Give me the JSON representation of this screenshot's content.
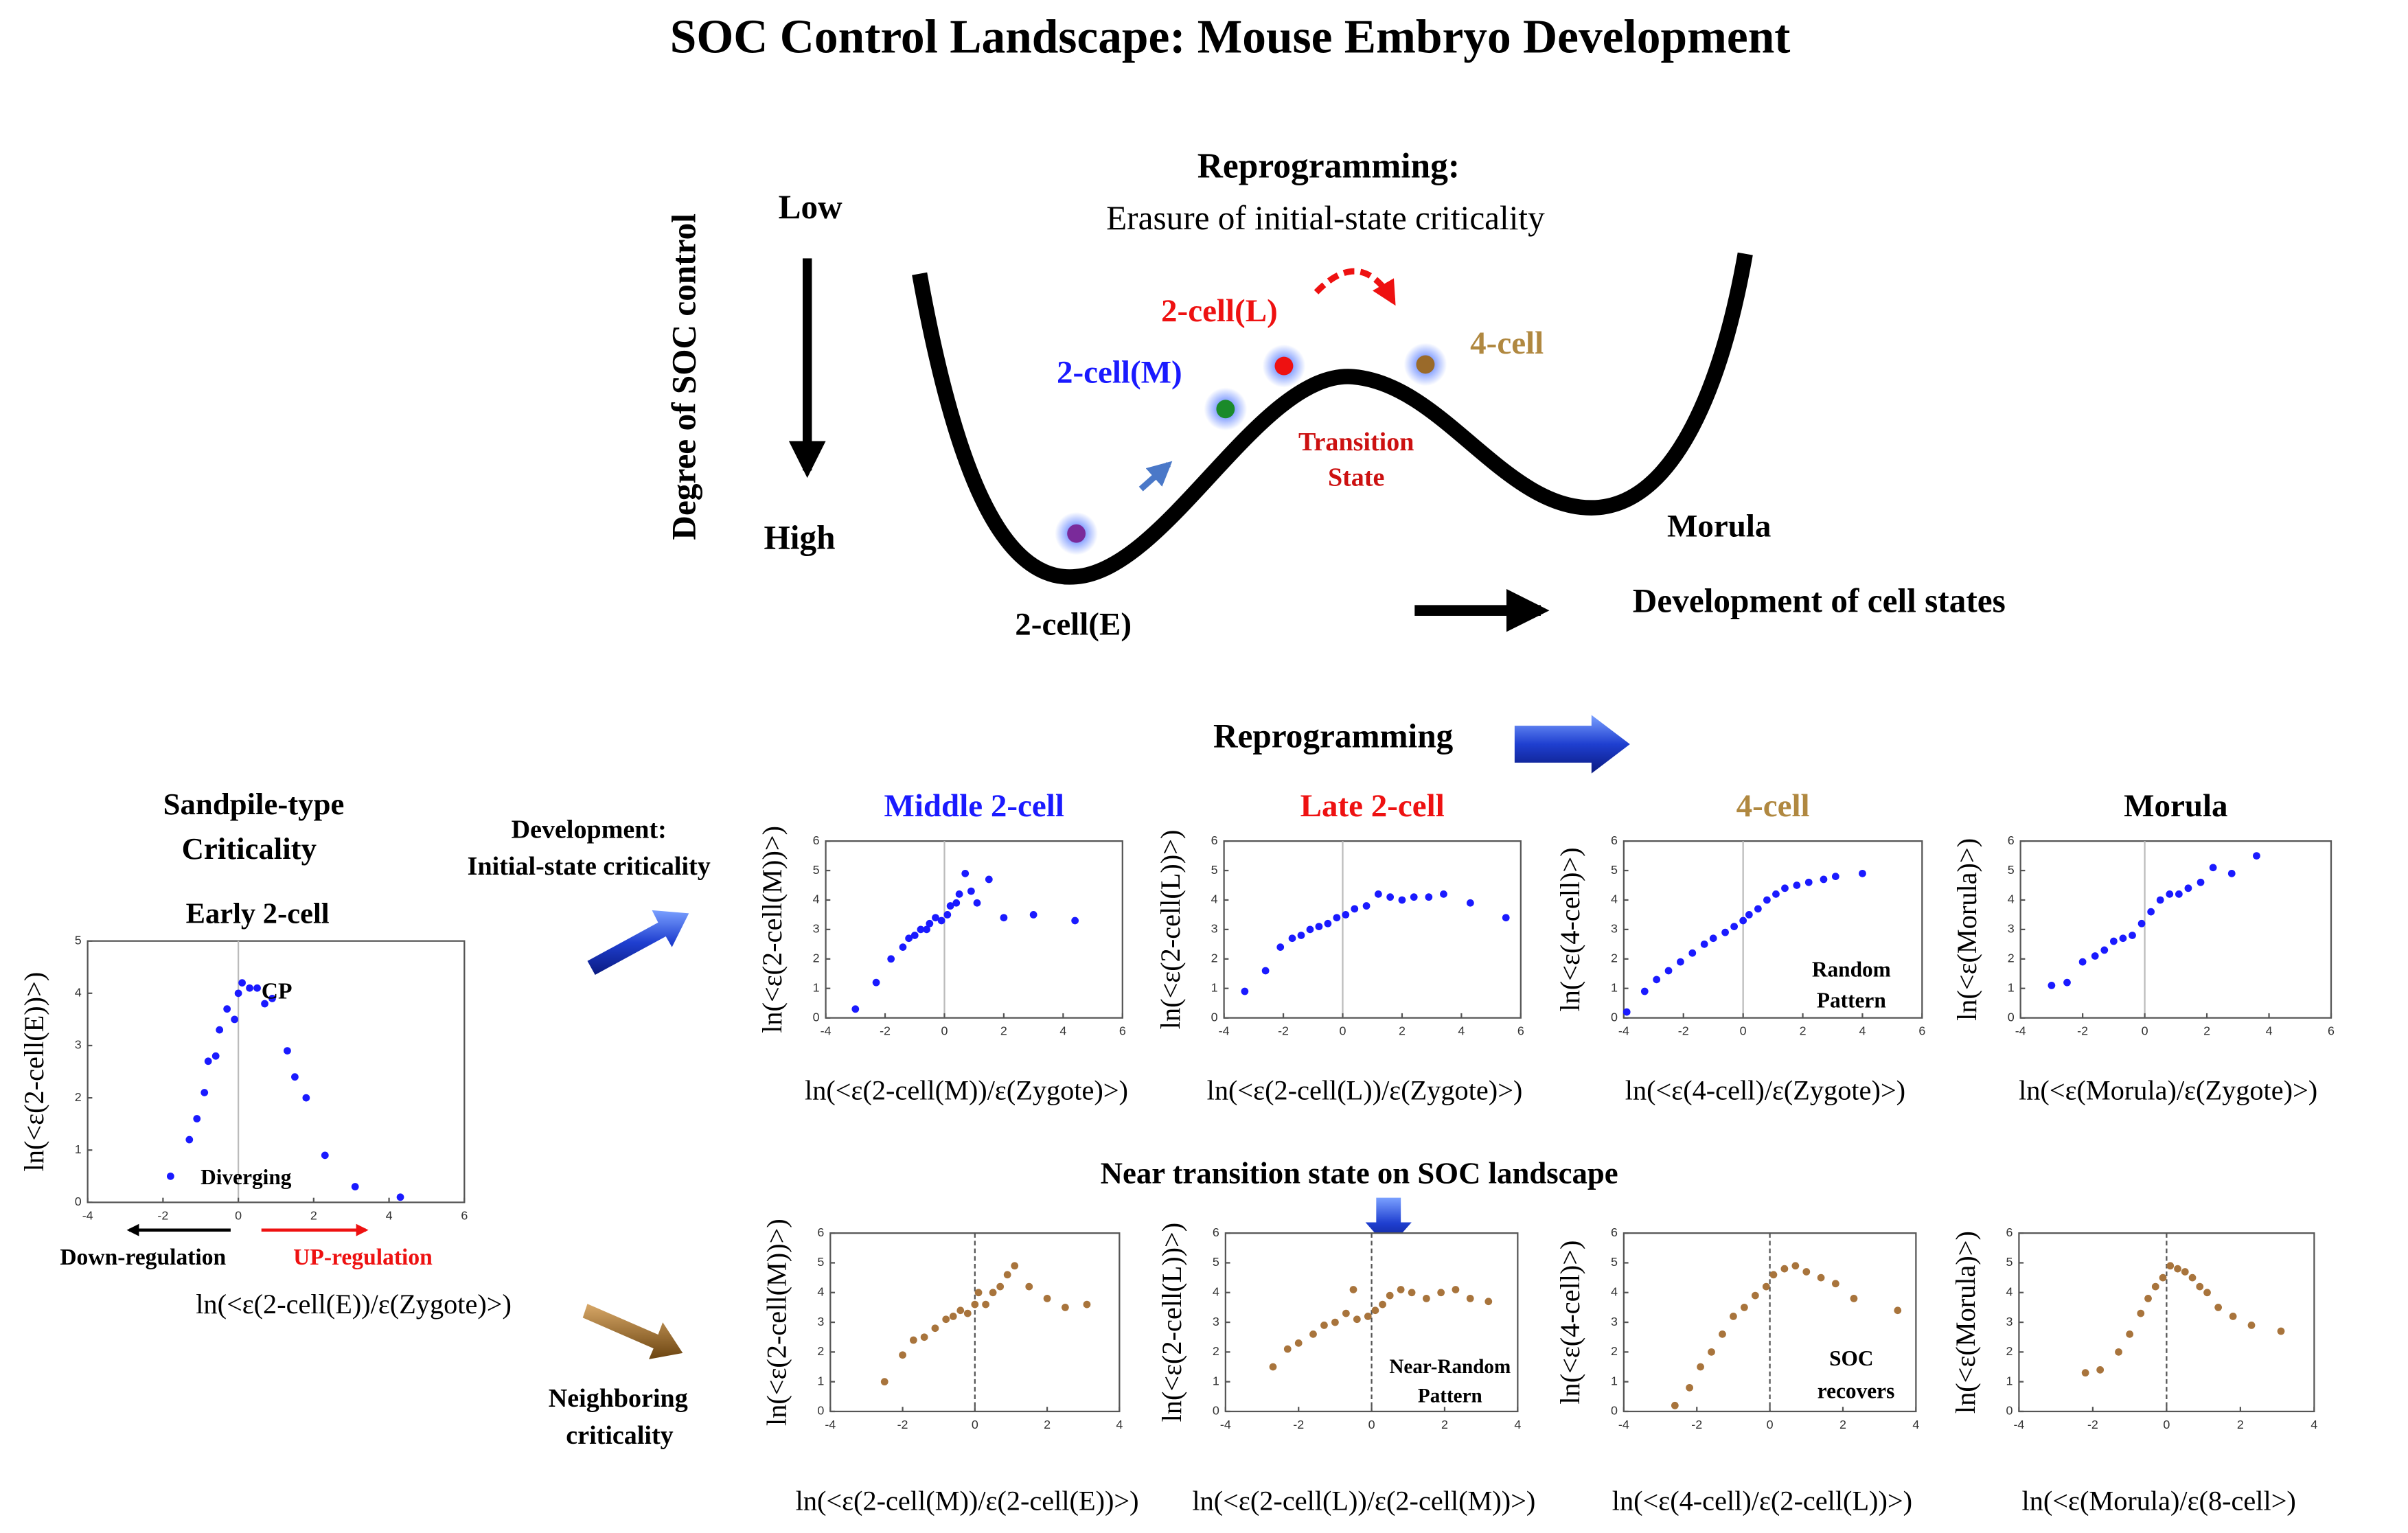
{
  "title": "SOC Control Landscape: Mouse Embryo Development",
  "landscape": {
    "y_axis": "Degree of SOC control",
    "low": "Low",
    "high": "High",
    "heading": "Reprogramming:",
    "subheading": "Erasure of initial-state criticality",
    "states": [
      "2-cell(E)",
      "2-cell(M)",
      "2-cell(L)",
      "4-cell",
      "Morula"
    ],
    "transition": [
      "Transition",
      "State"
    ],
    "x_axis": "Development of cell states"
  },
  "labels": {
    "reprogramming": "Reprogramming",
    "sandpile": [
      "Sandpile-type",
      "Criticality"
    ],
    "development": [
      "Development:",
      "Initial-state criticality"
    ],
    "near_transition": "Near transition state on SOC landscape",
    "neighboring": [
      "Neighboring",
      "criticality"
    ],
    "down": "Down-regulation",
    "up": "UP-regulation"
  },
  "chart_data": [
    {
      "type": "scatter",
      "title": "Early 2-cell",
      "title_color": "#000000",
      "x_label": "ln(<ε(2-cell(E))/ε(Zygote)>)",
      "y_label": "ln(<ε(2-cell(E))>)",
      "color": "#1a1aff",
      "xlim": [
        -4,
        6
      ],
      "ylim": [
        0,
        5
      ],
      "xticks": [
        -4,
        -2,
        0,
        2,
        4,
        6
      ],
      "yticks": [
        0,
        1,
        2,
        3,
        4,
        5
      ],
      "zero_line": "solid",
      "x": [
        -1.8,
        -1.3,
        -1.1,
        -0.9,
        -0.8,
        -0.6,
        -0.5,
        -0.3,
        -0.1,
        0,
        0.1,
        0.3,
        0.5,
        0.7,
        0.9,
        1.3,
        1.5,
        1.8,
        2.3,
        3.1,
        4.3
      ],
      "y": [
        0.5,
        1.2,
        1.6,
        2.1,
        2.7,
        2.8,
        3.3,
        3.7,
        3.5,
        4.0,
        4.2,
        4.1,
        4.1,
        3.8,
        3.9,
        2.9,
        2.4,
        2.0,
        0.9,
        0.3,
        0.1
      ],
      "annotations": [
        "CP",
        "Diverging"
      ]
    },
    {
      "type": "scatter",
      "title": "Middle 2-cell",
      "title_color": "#1a1aff",
      "x_label": "ln(<ε(2-cell(M))/ε(Zygote)>)",
      "y_label": "ln(<ε(2-cell(M))>)",
      "color": "#1a1aff",
      "xlim": [
        -4,
        6
      ],
      "ylim": [
        0,
        6
      ],
      "xticks": [
        -4,
        -2,
        0,
        2,
        4,
        6
      ],
      "yticks": [
        0,
        1,
        2,
        3,
        4,
        5,
        6
      ],
      "zero_line": "solid",
      "x": [
        -3,
        -2.3,
        -1.8,
        -1.4,
        -1.2,
        -1,
        -0.8,
        -0.6,
        -0.5,
        -0.3,
        -0.1,
        0.1,
        0.2,
        0.4,
        0.5,
        0.7,
        0.9,
        1.1,
        1.5,
        2,
        3,
        4.4
      ],
      "y": [
        0.3,
        1.2,
        2,
        2.4,
        2.7,
        2.8,
        3,
        3,
        3.2,
        3.4,
        3.3,
        3.5,
        3.8,
        3.9,
        4.2,
        4.9,
        4.3,
        3.9,
        4.7,
        3.4,
        3.5,
        3.3
      ],
      "annotations": []
    },
    {
      "type": "scatter",
      "title": "Late 2-cell",
      "title_color": "#ee1111",
      "x_label": "ln(<ε(2-cell(L))/ε(Zygote)>)",
      "y_label": "ln(<ε(2-cell(L))>)",
      "color": "#1a1aff",
      "xlim": [
        -4,
        6
      ],
      "ylim": [
        0,
        6
      ],
      "xticks": [
        -4,
        -2,
        0,
        2,
        4,
        6
      ],
      "yticks": [
        0,
        1,
        2,
        3,
        4,
        5,
        6
      ],
      "zero_line": "solid",
      "x": [
        -3.3,
        -2.6,
        -2.1,
        -1.7,
        -1.4,
        -1.1,
        -0.8,
        -0.5,
        -0.2,
        0.1,
        0.4,
        0.8,
        1.2,
        1.6,
        2,
        2.4,
        2.9,
        3.4,
        4.3,
        5.5
      ],
      "y": [
        0.9,
        1.6,
        2.4,
        2.7,
        2.8,
        3,
        3.1,
        3.2,
        3.4,
        3.5,
        3.7,
        3.8,
        4.2,
        4.1,
        4,
        4.1,
        4.1,
        4.2,
        3.9,
        3.4
      ],
      "annotations": []
    },
    {
      "type": "scatter",
      "title": "4-cell",
      "title_color": "#b08840",
      "x_label": "ln(<ε(4-cell)/ε(Zygote)>)",
      "y_label": "ln(<ε(4-cell)>)",
      "color": "#1a1aff",
      "xlim": [
        -4,
        6
      ],
      "ylim": [
        0,
        6
      ],
      "xticks": [
        -4,
        -2,
        0,
        2,
        4,
        6
      ],
      "yticks": [
        0,
        1,
        2,
        3,
        4,
        5,
        6
      ],
      "zero_line": "solid",
      "x": [
        -3.9,
        -3.3,
        -2.9,
        -2.5,
        -2.1,
        -1.7,
        -1.3,
        -1,
        -0.6,
        -0.3,
        0,
        0.2,
        0.5,
        0.8,
        1.1,
        1.4,
        1.8,
        2.2,
        2.7,
        3.1,
        4
      ],
      "y": [
        0.2,
        0.9,
        1.3,
        1.6,
        1.9,
        2.2,
        2.5,
        2.7,
        2.9,
        3.1,
        3.3,
        3.5,
        3.7,
        4,
        4.2,
        4.4,
        4.5,
        4.6,
        4.7,
        4.8,
        4.9
      ],
      "annotations": [
        "Random",
        "Pattern"
      ]
    },
    {
      "type": "scatter",
      "title": "Morula",
      "title_color": "#000000",
      "x_label": "ln(<ε(Morula)/ε(Zygote)>)",
      "y_label": "ln(<ε(Morula)>)",
      "color": "#1a1aff",
      "xlim": [
        -4,
        6
      ],
      "ylim": [
        0,
        6
      ],
      "xticks": [
        -4,
        -2,
        0,
        2,
        4,
        6
      ],
      "yticks": [
        0,
        1,
        2,
        3,
        4,
        5,
        6
      ],
      "zero_line": "solid",
      "x": [
        -3,
        -2.5,
        -2,
        -1.6,
        -1.3,
        -1,
        -0.7,
        -0.4,
        -0.1,
        0.2,
        0.5,
        0.8,
        1.1,
        1.4,
        1.8,
        2.2,
        2.8,
        3.6
      ],
      "y": [
        1.1,
        1.2,
        1.9,
        2.1,
        2.3,
        2.6,
        2.7,
        2.8,
        3.2,
        3.6,
        4,
        4.2,
        4.2,
        4.4,
        4.6,
        5.1,
        4.9,
        5.5
      ],
      "annotations": []
    },
    {
      "type": "scatter",
      "x_label": "ln(<ε(2-cell(M))/ε(2-cell(E))>)",
      "y_label": "ln(<ε(2-cell(M))>)",
      "color": "#a8743c",
      "xlim": [
        -4,
        4
      ],
      "ylim": [
        0,
        6
      ],
      "xticks": [
        -4,
        -2,
        0,
        2,
        4
      ],
      "yticks": [
        0,
        1,
        2,
        3,
        4,
        5,
        6
      ],
      "zero_line": "dashed",
      "x": [
        -2.5,
        -2,
        -1.7,
        -1.4,
        -1.1,
        -0.8,
        -0.6,
        -0.4,
        -0.2,
        0,
        0.1,
        0.3,
        0.5,
        0.7,
        0.9,
        1.1,
        1.5,
        2,
        2.5,
        3.1
      ],
      "y": [
        1,
        1.9,
        2.4,
        2.5,
        2.8,
        3.1,
        3.2,
        3.4,
        3.3,
        3.6,
        4,
        3.6,
        4,
        4.2,
        4.6,
        4.9,
        4.2,
        3.8,
        3.5,
        3.6
      ],
      "annotations": []
    },
    {
      "type": "scatter",
      "x_label": "ln(<ε(2-cell(L))/ε(2-cell(M))>)",
      "y_label": "ln(<ε(2-cell(L))>)",
      "color": "#a8743c",
      "xlim": [
        -4,
        4
      ],
      "ylim": [
        0,
        6
      ],
      "xticks": [
        -4,
        -2,
        0,
        2,
        4
      ],
      "yticks": [
        0,
        1,
        2,
        3,
        4,
        5,
        6
      ],
      "zero_line": "dashed",
      "x": [
        -2.7,
        -2.3,
        -2,
        -1.6,
        -1.3,
        -1,
        -0.7,
        -0.5,
        -0.4,
        -0.1,
        0.1,
        0.3,
        0.5,
        0.8,
        1.1,
        1.5,
        1.9,
        2.3,
        2.7,
        3.2
      ],
      "y": [
        1.5,
        2.1,
        2.3,
        2.6,
        2.9,
        3,
        3.3,
        4.1,
        3.1,
        3.2,
        3.4,
        3.6,
        3.9,
        4.1,
        4,
        3.8,
        4,
        4.1,
        3.8,
        3.7
      ],
      "annotations": [
        "Near-Random",
        "Pattern"
      ]
    },
    {
      "type": "scatter",
      "x_label": "ln(<ε(4-cell)/ε(2-cell(L))>)",
      "y_label": "ln(<ε(4-cell)>)",
      "color": "#a8743c",
      "xlim": [
        -4,
        4
      ],
      "ylim": [
        0,
        6
      ],
      "xticks": [
        -4,
        -2,
        0,
        2,
        4
      ],
      "yticks": [
        0,
        1,
        2,
        3,
        4,
        5,
        6
      ],
      "zero_line": "dashed",
      "x": [
        -2.6,
        -2.2,
        -1.9,
        -1.6,
        -1.3,
        -1,
        -0.7,
        -0.4,
        -0.1,
        0.1,
        0.4,
        0.7,
        1,
        1.4,
        1.8,
        2.3,
        3.5
      ],
      "y": [
        0.2,
        0.8,
        1.5,
        2,
        2.6,
        3.2,
        3.5,
        3.9,
        4.2,
        4.6,
        4.8,
        4.9,
        4.7,
        4.5,
        4.3,
        3.8,
        3.4
      ],
      "annotations": [
        "SOC",
        "recovers"
      ]
    },
    {
      "type": "scatter",
      "x_label": "ln(<ε(Morula)/ε(8-cell>)",
      "y_label": "ln(<ε(Morula)>)",
      "color": "#a8743c",
      "xlim": [
        -4,
        4
      ],
      "ylim": [
        0,
        6
      ],
      "xticks": [
        -4,
        -2,
        0,
        2,
        4
      ],
      "yticks": [
        0,
        1,
        2,
        3,
        4,
        5,
        6
      ],
      "zero_line": "dashed",
      "x": [
        -2.2,
        -1.8,
        -1.3,
        -1,
        -0.7,
        -0.5,
        -0.3,
        -0.1,
        0.1,
        0.3,
        0.5,
        0.7,
        0.9,
        1.1,
        1.4,
        1.8,
        2.3,
        3.1
      ],
      "y": [
        1.3,
        1.4,
        2,
        2.6,
        3.3,
        3.8,
        4.2,
        4.5,
        4.9,
        4.8,
        4.7,
        4.5,
        4.2,
        4,
        3.5,
        3.2,
        2.9,
        2.7
      ],
      "annotations": []
    }
  ]
}
